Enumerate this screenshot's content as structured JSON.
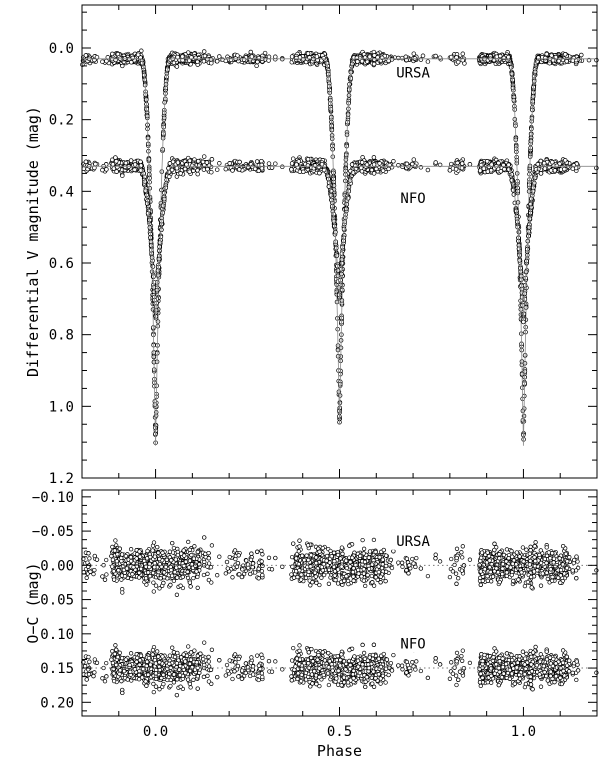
{
  "chart_data": [
    {
      "type": "scatter",
      "panel": "top",
      "xlabel": "",
      "ylabel": "Differential V magnitude (mag)",
      "xlim": [
        -0.2,
        1.2
      ],
      "ylim": [
        1.2,
        -0.12
      ],
      "y_inverted": true,
      "xticks": [
        0.0,
        0.5,
        1.0
      ],
      "xtick_labels": [
        "",
        "",
        ""
      ],
      "yticks": [
        0.0,
        0.2,
        0.4,
        0.6,
        0.8,
        1.0,
        1.2
      ],
      "ytick_labels": [
        "0.0",
        "0.2",
        "0.4",
        "0.6",
        "0.8",
        "1.0",
        "1.2"
      ],
      "grid": false,
      "series": [
        {
          "name": "URSA",
          "baseline": 0.03,
          "primary_eclipse": {
            "phase": 0.0,
            "depth_mag": 1.11
          },
          "secondary_eclipse": {
            "phase": 0.5,
            "depth_mag": 1.05
          },
          "eclipse_half_width_phase": 0.04,
          "scatter_mag": 0.006,
          "marker": "open-circle",
          "color": "#000000"
        },
        {
          "name": "NFO",
          "baseline": 0.33,
          "primary_eclipse": {
            "phase": 0.0,
            "depth_mag": 0.76
          },
          "secondary_eclipse": {
            "phase": 0.5,
            "depth_mag": 0.7
          },
          "eclipse_half_width_phase": 0.045,
          "scatter_mag": 0.008,
          "marker": "open-circle",
          "color": "#000000"
        }
      ],
      "labels": [
        {
          "text": "URSA",
          "phase": 0.7,
          "mag": 0.08
        },
        {
          "text": "NFO",
          "phase": 0.7,
          "mag": 0.43
        }
      ]
    },
    {
      "type": "scatter",
      "panel": "bottom",
      "xlabel": "Phase",
      "ylabel": "O−C (mag)",
      "xlim": [
        -0.2,
        1.2
      ],
      "ylim": [
        0.22,
        -0.11
      ],
      "y_inverted": true,
      "xticks": [
        0.0,
        0.5,
        1.0
      ],
      "xtick_labels": [
        "0.0",
        "0.5",
        "1.0"
      ],
      "yticks": [
        -0.1,
        -0.05,
        0.0,
        0.05,
        0.1,
        0.15,
        0.2
      ],
      "ytick_labels": [
        "−0.10",
        "−0.05",
        "0.00",
        "0.05",
        "0.10",
        "0.15",
        "0.20"
      ],
      "grid": false,
      "series": [
        {
          "name": "URSA",
          "offset": 0.0,
          "scatter_mag": 0.012,
          "reference_line": "dotted",
          "color": "#000000"
        },
        {
          "name": "NFO",
          "offset": 0.15,
          "scatter_mag": 0.011,
          "reference_line": "dotted",
          "color": "#000000"
        }
      ],
      "labels": [
        {
          "text": "URSA",
          "phase": 0.7,
          "mag": -0.03
        },
        {
          "text": "NFO",
          "phase": 0.7,
          "mag": 0.12
        }
      ]
    }
  ]
}
